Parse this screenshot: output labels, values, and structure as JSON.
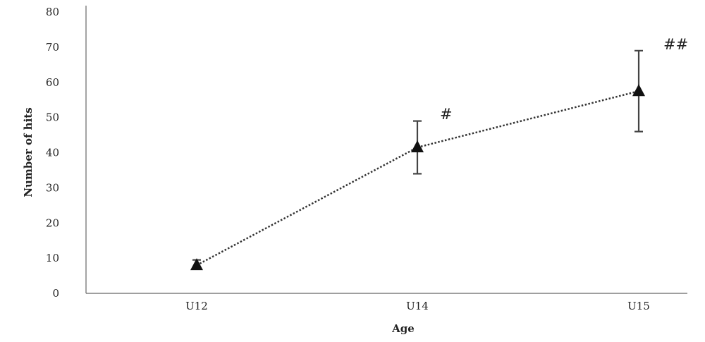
{
  "chart_data": {
    "type": "line",
    "title": "",
    "xlabel": "Age",
    "ylabel": "Number of hits",
    "categories": [
      "U12",
      "U14",
      "U15"
    ],
    "ylim": [
      0,
      80
    ],
    "yticks": [
      0,
      10,
      20,
      30,
      40,
      50,
      60,
      70,
      80
    ],
    "series": [
      {
        "values": [
          8,
          41.5,
          57.5
        ],
        "error_low": [
          7,
          34,
          46
        ],
        "error_high": [
          9.5,
          49,
          69
        ],
        "marker": "triangle",
        "line_style": "dotted",
        "color": "#333333"
      }
    ],
    "annotations": [
      {
        "category": "U14",
        "text": "#"
      },
      {
        "category": "U15",
        "text": "##"
      }
    ],
    "grid": false,
    "legend": "none"
  }
}
